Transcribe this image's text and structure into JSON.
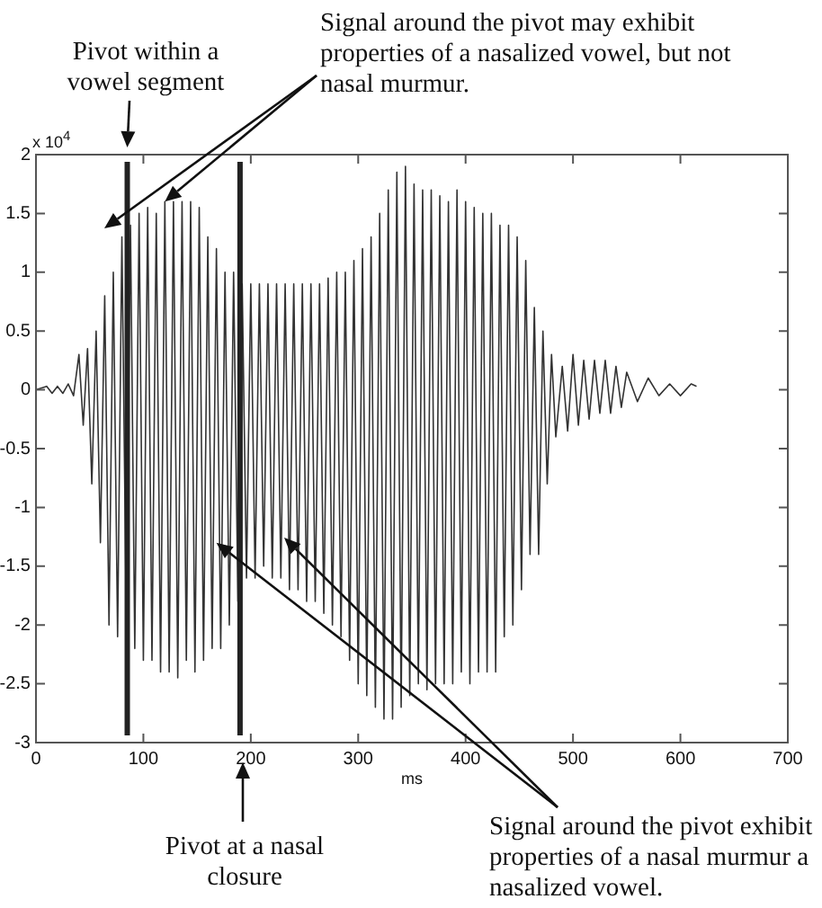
{
  "chart_data": {
    "type": "line",
    "xlabel": "ms",
    "annotations": [
      "x 10$^{4}$",
      {
        "text": "Pivot within a vowel segment",
        "x": 85,
        "y": 2
      },
      {
        "text": "Signal around the pivot may exhibit properties of a nasalized vowel, but not nasal murmur.",
        "x": 120,
        "y": 1.6
      },
      "Pivot at a nasal closure",
      {
        "text": "Signal around the pivot exhibit properties of a nasal murmur a nasalized vowel.",
        "x": 168,
        "y": -1.3
      }
    ],
    "xlim": [
      0,
      700
    ],
    "xticks": [
      0,
      100,
      200,
      300,
      400,
      500,
      600,
      700
    ],
    "ylim": [
      -3,
      2
    ],
    "yticks": [
      -3,
      -2.5,
      -2,
      -1.5,
      -1,
      -0.5,
      0,
      0.5,
      1,
      1.5,
      2
    ],
    "grid": false,
    "legend": false,
    "marker": "none",
    "line_style": "solid",
    "ref_lines": [
      {
        "axis": "x",
        "value": 85,
        "color": "#222222"
      },
      {
        "axis": "x",
        "value": 190,
        "color": "#222222"
      }
    ],
    "series": [
      {
        "color": "#333333",
        "x": [
          0,
          10,
          15,
          20,
          25,
          30,
          35,
          40,
          44,
          48,
          52,
          56,
          60,
          64,
          68,
          72,
          76,
          80,
          84,
          88,
          92,
          96,
          100,
          104,
          108,
          112,
          116,
          120,
          124,
          128,
          132,
          136,
          140,
          144,
          148,
          152,
          156,
          160,
          164,
          168,
          172,
          176,
          180,
          184,
          188,
          192,
          196,
          200,
          204,
          208,
          212,
          216,
          220,
          224,
          228,
          232,
          236,
          240,
          244,
          248,
          252,
          256,
          260,
          264,
          268,
          272,
          276,
          280,
          284,
          288,
          292,
          296,
          300,
          304,
          308,
          312,
          316,
          320,
          324,
          328,
          332,
          336,
          340,
          344,
          348,
          352,
          356,
          360,
          364,
          368,
          372,
          376,
          380,
          384,
          388,
          392,
          396,
          400,
          404,
          408,
          412,
          416,
          420,
          424,
          428,
          432,
          436,
          440,
          444,
          448,
          452,
          456,
          460,
          464,
          468,
          472,
          476,
          480,
          484,
          490,
          495,
          500,
          505,
          510,
          515,
          520,
          525,
          530,
          535,
          540,
          545,
          550,
          560,
          570,
          580,
          590,
          600,
          610,
          615
        ],
        "values": [
          0,
          0.03,
          -0.03,
          0.03,
          -0.03,
          0.05,
          -0.05,
          0.3,
          -0.3,
          0.35,
          -0.8,
          0.5,
          -1.3,
          0.8,
          -2.0,
          1.0,
          -2.1,
          1.3,
          -1.9,
          1.4,
          -2.2,
          1.5,
          -2.3,
          1.55,
          -2.3,
          1.5,
          -2.4,
          1.6,
          -2.4,
          1.6,
          -2.45,
          1.6,
          -2.3,
          1.6,
          -2.4,
          1.55,
          -2.3,
          1.3,
          -2.2,
          1.2,
          -2.2,
          1.0,
          -2.0,
          1.0,
          -1.8,
          0.9,
          -1.6,
          0.9,
          -1.6,
          0.9,
          -1.5,
          0.9,
          -1.6,
          0.9,
          -1.6,
          0.9,
          -1.7,
          0.9,
          -1.7,
          0.9,
          -1.8,
          0.9,
          -1.8,
          0.9,
          -1.9,
          0.95,
          -2.0,
          1.0,
          -2.1,
          1.0,
          -2.3,
          1.1,
          -2.5,
          1.2,
          -2.6,
          1.3,
          -2.7,
          1.5,
          -2.8,
          1.7,
          -2.8,
          1.85,
          -2.7,
          1.9,
          -2.6,
          1.75,
          -2.5,
          1.7,
          -2.55,
          1.7,
          -2.5,
          1.65,
          -2.5,
          1.6,
          -2.5,
          1.7,
          -2.4,
          1.6,
          -2.5,
          1.55,
          -2.4,
          1.5,
          -2.4,
          1.5,
          -2.4,
          1.4,
          -2.1,
          1.4,
          -2.0,
          1.3,
          -1.7,
          1.1,
          -1.4,
          0.7,
          -1.4,
          0.5,
          -0.8,
          0.3,
          -0.4,
          0.2,
          -0.35,
          0.3,
          -0.3,
          0.25,
          -0.25,
          0.25,
          -0.2,
          0.25,
          -0.2,
          0.2,
          -0.15,
          0.15,
          -0.1,
          0.1,
          -0.05,
          0.05,
          -0.05,
          0.05,
          0.03
        ]
      }
    ]
  }
}
